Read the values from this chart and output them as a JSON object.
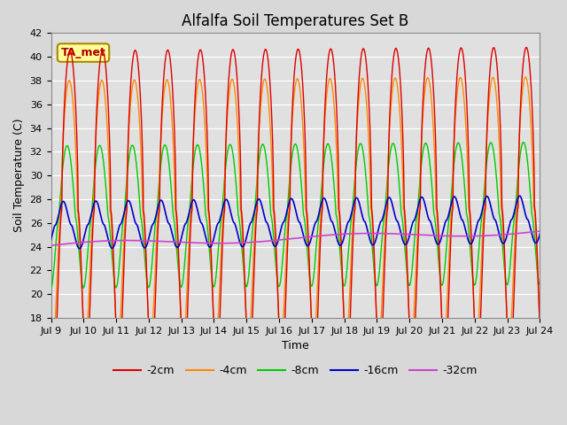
{
  "title": "Alfalfa Soil Temperatures Set B",
  "xlabel": "Time",
  "ylabel": "Soil Temperature (C)",
  "ylim": [
    18,
    42
  ],
  "n_days": 15,
  "xtick_labels": [
    "Jul 9",
    "Jul 10",
    "Jul 11",
    "Jul 12",
    "Jul 13",
    "Jul 14",
    "Jul 15",
    "Jul 16",
    "Jul 17",
    "Jul 18",
    "Jul 19",
    "Jul 20",
    "Jul 21",
    "Jul 22",
    "Jul 23",
    "Jul 24"
  ],
  "series": {
    "-2cm": {
      "color": "#dd0000",
      "lw": 1.0
    },
    "-4cm": {
      "color": "#ff8800",
      "lw": 1.0
    },
    "-8cm": {
      "color": "#00cc00",
      "lw": 1.0
    },
    "-16cm": {
      "color": "#0000cc",
      "lw": 1.2
    },
    "-32cm": {
      "color": "#cc44cc",
      "lw": 1.2
    }
  },
  "annotation": {
    "text": "TA_met",
    "fontsize": 9,
    "color": "#aa0000",
    "bg": "#ffff99",
    "border": "#aa8800"
  },
  "bg_color": "#e0e0e0",
  "grid_color": "#ffffff",
  "title_fontsize": 12,
  "axis_label_fontsize": 9,
  "tick_fontsize": 8
}
